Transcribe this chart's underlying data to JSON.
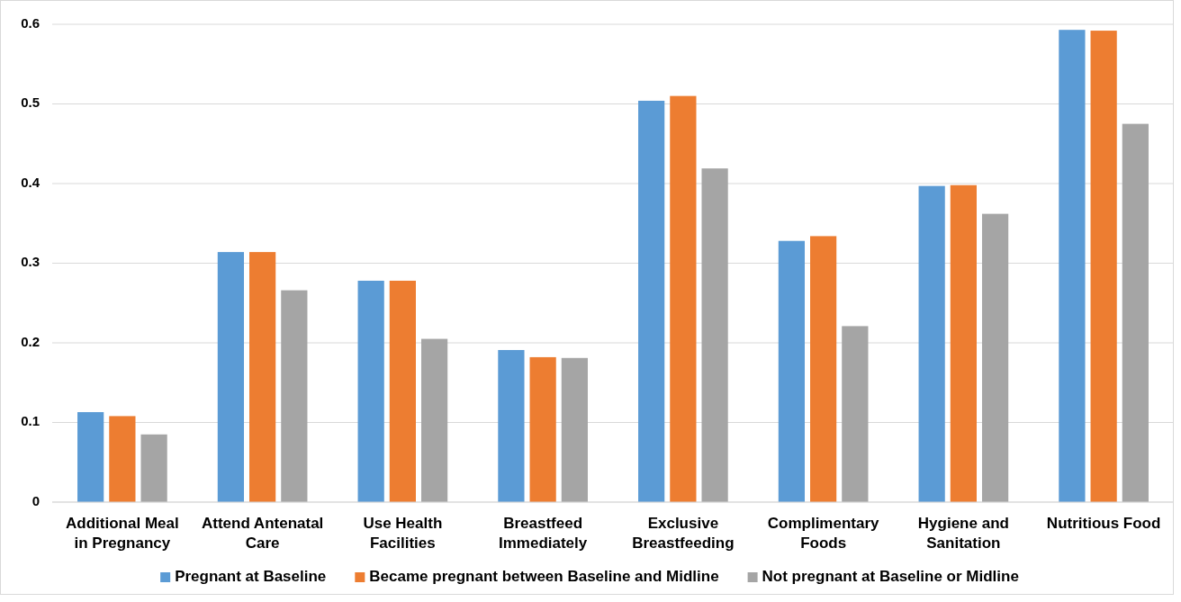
{
  "chart_data": {
    "type": "bar",
    "categories": [
      "Additional Meal in Pregnancy",
      "Attend Antenatal Care",
      "Use Health Facilities",
      "Breastfeed Immediately",
      "Exclusive Breastfeeding",
      "Complimentary Foods",
      "Hygiene and Sanitation",
      "Nutritious Food"
    ],
    "series": [
      {
        "name": "Pregnant at Baseline",
        "color": "#5b9bd5",
        "values": [
          0.113,
          0.314,
          0.278,
          0.191,
          0.504,
          0.328,
          0.397,
          0.593
        ]
      },
      {
        "name": "Became pregnant between Baseline and Midline",
        "color": "#ed7d31",
        "values": [
          0.108,
          0.314,
          0.278,
          0.182,
          0.51,
          0.334,
          0.398,
          0.592
        ]
      },
      {
        "name": "Not pregnant at Baseline or Midline",
        "color": "#a5a5a5",
        "values": [
          0.085,
          0.266,
          0.205,
          0.181,
          0.419,
          0.221,
          0.362,
          0.475
        ]
      }
    ],
    "ylim": [
      0,
      0.6
    ],
    "yticks": [
      {
        "value": 0,
        "label": "0"
      },
      0.1,
      0.2,
      0.3,
      0.4,
      0.5,
      0.6
    ],
    "grid": "y",
    "legend": "bottom"
  }
}
